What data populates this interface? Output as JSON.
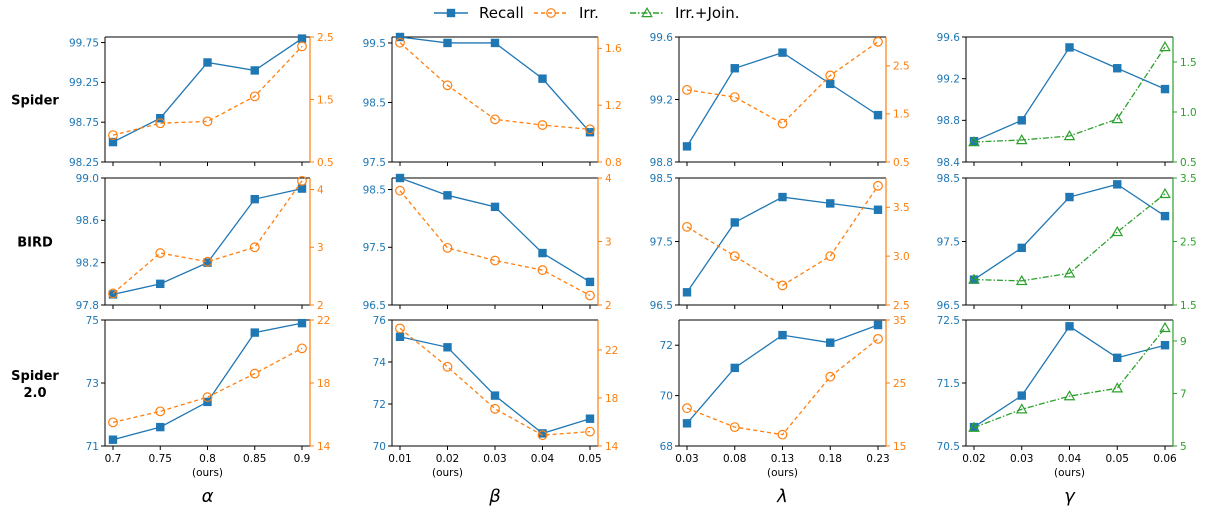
{
  "colors": {
    "recall": "#1f77b4",
    "irr": "#ff7f0e",
    "join": "#2ca02c"
  },
  "legend": [
    {
      "key": "recall",
      "label": "Recall"
    },
    {
      "key": "irr",
      "label": "Irr."
    },
    {
      "key": "join",
      "label": "Irr.+Join."
    }
  ],
  "rows": [
    {
      "label": "Spider"
    },
    {
      "label": "BIRD"
    },
    {
      "label": "Spider\n2.0"
    }
  ],
  "columns": [
    {
      "param": "α",
      "x": [
        "0.7",
        "0.75",
        "0.8",
        "0.85",
        "0.9"
      ],
      "ours_index": 2,
      "secondary": "irr"
    },
    {
      "param": "β",
      "x": [
        "0.01",
        "0.02",
        "0.03",
        "0.04",
        "0.05"
      ],
      "ours_index": 1,
      "secondary": "irr"
    },
    {
      "param": "λ",
      "x": [
        "0.03",
        "0.08",
        "0.13",
        "0.18",
        "0.23"
      ],
      "ours_index": 2,
      "secondary": "irr"
    },
    {
      "param": "γ",
      "x": [
        "0.02",
        "0.03",
        "0.04",
        "0.05",
        "0.06"
      ],
      "ours_index": 2,
      "secondary": "join"
    }
  ],
  "ours_label": "(ours)",
  "chart_data": [
    {
      "type": "line",
      "row": "Spider",
      "param": "α",
      "x": [
        0.7,
        0.75,
        0.8,
        0.85,
        0.9
      ],
      "left": {
        "ylim": [
          98.25,
          99.82
        ],
        "ticks": [
          "98.25",
          "98.75",
          "99.25",
          "99.75"
        ],
        "tickvals": [
          98.25,
          98.75,
          99.25,
          99.75
        ]
      },
      "right": {
        "ylim": [
          0.5,
          2.5
        ],
        "ticks": [
          "0.5",
          "1.5",
          "2.5"
        ],
        "tickvals": [
          0.5,
          1.5,
          2.5
        ]
      },
      "series": [
        {
          "name": "Recall",
          "key": "recall",
          "axis": "left",
          "values": [
            98.5,
            98.8,
            99.5,
            99.4,
            99.8
          ]
        },
        {
          "name": "Irr.",
          "key": "irr",
          "axis": "right",
          "values": [
            0.93,
            1.12,
            1.15,
            1.55,
            2.35
          ]
        }
      ]
    },
    {
      "type": "line",
      "row": "Spider",
      "param": "β",
      "x": [
        0.01,
        0.02,
        0.03,
        0.04,
        0.05
      ],
      "left": {
        "ylim": [
          97.5,
          99.6
        ],
        "ticks": [
          "97.5",
          "98.5",
          "99.5"
        ],
        "tickvals": [
          97.5,
          98.5,
          99.5
        ]
      },
      "right": {
        "ylim": [
          0.8,
          1.68
        ],
        "ticks": [
          "0.8",
          "1.2",
          "1.6"
        ],
        "tickvals": [
          0.8,
          1.2,
          1.6
        ]
      },
      "series": [
        {
          "name": "Recall",
          "key": "recall",
          "axis": "left",
          "values": [
            99.6,
            99.5,
            99.5,
            98.9,
            98.0
          ]
        },
        {
          "name": "Irr.",
          "key": "irr",
          "axis": "right",
          "values": [
            1.64,
            1.34,
            1.1,
            1.06,
            1.03
          ]
        }
      ]
    },
    {
      "type": "line",
      "row": "Spider",
      "param": "λ",
      "x": [
        0.03,
        0.08,
        0.13,
        0.18,
        0.23
      ],
      "left": {
        "ylim": [
          98.8,
          99.6
        ],
        "ticks": [
          "98.8",
          "99.2",
          "99.6"
        ],
        "tickvals": [
          98.8,
          99.2,
          99.6
        ]
      },
      "right": {
        "ylim": [
          0.5,
          3.1
        ],
        "ticks": [
          "0.5",
          "1.5",
          "2.5"
        ],
        "tickvals": [
          0.5,
          1.5,
          2.5
        ]
      },
      "series": [
        {
          "name": "Recall",
          "key": "recall",
          "axis": "left",
          "values": [
            98.9,
            99.4,
            99.5,
            99.3,
            99.1
          ]
        },
        {
          "name": "Irr.",
          "key": "irr",
          "axis": "right",
          "values": [
            2.0,
            1.85,
            1.3,
            2.3,
            3.0
          ]
        }
      ]
    },
    {
      "type": "line",
      "row": "Spider",
      "param": "γ",
      "x": [
        0.02,
        0.03,
        0.04,
        0.05,
        0.06
      ],
      "left": {
        "ylim": [
          98.4,
          99.6
        ],
        "ticks": [
          "98.4",
          "98.8",
          "99.2",
          "99.6"
        ],
        "tickvals": [
          98.4,
          98.8,
          99.2,
          99.6
        ]
      },
      "right": {
        "ylim": [
          0.5,
          1.75
        ],
        "ticks": [
          "0.5",
          "1.0",
          "1.5"
        ],
        "tickvals": [
          0.5,
          1.0,
          1.5
        ]
      },
      "series": [
        {
          "name": "Recall",
          "key": "recall",
          "axis": "left",
          "values": [
            98.6,
            98.8,
            99.5,
            99.3,
            99.1
          ]
        },
        {
          "name": "Irr.+Join.",
          "key": "join",
          "axis": "right",
          "values": [
            0.7,
            0.72,
            0.76,
            0.93,
            1.65
          ]
        }
      ]
    },
    {
      "type": "line",
      "row": "BIRD",
      "param": "α",
      "x": [
        0.7,
        0.75,
        0.8,
        0.85,
        0.9
      ],
      "left": {
        "ylim": [
          97.8,
          99.0
        ],
        "ticks": [
          "97.8",
          "98.2",
          "98.6",
          "99.0"
        ],
        "tickvals": [
          97.8,
          98.2,
          98.6,
          99.0
        ]
      },
      "right": {
        "ylim": [
          2.0,
          4.2
        ],
        "ticks": [
          "2",
          "3",
          "4"
        ],
        "tickvals": [
          2,
          3,
          4
        ]
      },
      "series": [
        {
          "name": "Recall",
          "key": "recall",
          "axis": "left",
          "values": [
            97.9,
            98.0,
            98.2,
            98.8,
            98.9
          ]
        },
        {
          "name": "Irr.",
          "key": "irr",
          "axis": "right",
          "values": [
            2.2,
            2.9,
            2.75,
            3.0,
            4.15
          ]
        }
      ]
    },
    {
      "type": "line",
      "row": "BIRD",
      "param": "β",
      "x": [
        0.01,
        0.02,
        0.03,
        0.04,
        0.05
      ],
      "left": {
        "ylim": [
          96.5,
          98.7
        ],
        "ticks": [
          "96.5",
          "97.5",
          "98.5"
        ],
        "tickvals": [
          96.5,
          97.5,
          98.5
        ]
      },
      "right": {
        "ylim": [
          2.0,
          4.0
        ],
        "ticks": [
          "2",
          "3",
          "4"
        ],
        "tickvals": [
          2,
          3,
          4
        ]
      },
      "series": [
        {
          "name": "Recall",
          "key": "recall",
          "axis": "left",
          "values": [
            98.7,
            98.4,
            98.2,
            97.4,
            96.9
          ]
        },
        {
          "name": "Irr.",
          "key": "irr",
          "axis": "right",
          "values": [
            3.8,
            2.9,
            2.7,
            2.55,
            2.15
          ]
        }
      ]
    },
    {
      "type": "line",
      "row": "BIRD",
      "param": "λ",
      "x": [
        0.03,
        0.08,
        0.13,
        0.18,
        0.23
      ],
      "left": {
        "ylim": [
          96.5,
          98.5
        ],
        "ticks": [
          "96.5",
          "97.5",
          "98.5"
        ],
        "tickvals": [
          96.5,
          97.5,
          98.5
        ]
      },
      "right": {
        "ylim": [
          2.5,
          3.8
        ],
        "ticks": [
          "2.5",
          "3.0",
          "3.5"
        ],
        "tickvals": [
          2.5,
          3.0,
          3.5
        ]
      },
      "series": [
        {
          "name": "Recall",
          "key": "recall",
          "axis": "left",
          "values": [
            96.7,
            97.8,
            98.2,
            98.1,
            98.0
          ]
        },
        {
          "name": "Irr.",
          "key": "irr",
          "axis": "right",
          "values": [
            3.3,
            3.0,
            2.7,
            3.0,
            3.72
          ]
        }
      ]
    },
    {
      "type": "line",
      "row": "BIRD",
      "param": "γ",
      "x": [
        0.02,
        0.03,
        0.04,
        0.05,
        0.06
      ],
      "left": {
        "ylim": [
          96.5,
          98.5
        ],
        "ticks": [
          "96.5",
          "97.5",
          "98.5"
        ],
        "tickvals": [
          96.5,
          97.5,
          98.5
        ]
      },
      "right": {
        "ylim": [
          1.5,
          3.5
        ],
        "ticks": [
          "1.5",
          "2.5",
          "3.5"
        ],
        "tickvals": [
          1.5,
          2.5,
          3.5
        ]
      },
      "series": [
        {
          "name": "Recall",
          "key": "recall",
          "axis": "left",
          "values": [
            96.9,
            97.4,
            98.2,
            98.4,
            97.9
          ]
        },
        {
          "name": "Irr.+Join.",
          "key": "join",
          "axis": "right",
          "values": [
            1.9,
            1.88,
            2.0,
            2.65,
            3.25
          ]
        }
      ]
    },
    {
      "type": "line",
      "row": "Spider 2.0",
      "param": "α",
      "x": [
        0.7,
        0.75,
        0.8,
        0.85,
        0.9
      ],
      "left": {
        "ylim": [
          71.0,
          75.0
        ],
        "ticks": [
          "71",
          "73",
          "75"
        ],
        "tickvals": [
          71,
          73,
          75
        ]
      },
      "right": {
        "ylim": [
          14,
          22
        ],
        "ticks": [
          "14",
          "18",
          "22"
        ],
        "tickvals": [
          14,
          18,
          22
        ]
      },
      "series": [
        {
          "name": "Recall",
          "key": "recall",
          "axis": "left",
          "values": [
            71.2,
            71.6,
            72.4,
            74.6,
            74.9
          ]
        },
        {
          "name": "Irr.",
          "key": "irr",
          "axis": "right",
          "values": [
            15.5,
            16.2,
            17.1,
            18.6,
            20.2
          ]
        }
      ]
    },
    {
      "type": "line",
      "row": "Spider 2.0",
      "param": "β",
      "x": [
        0.01,
        0.02,
        0.03,
        0.04,
        0.05
      ],
      "left": {
        "ylim": [
          70.0,
          76.0
        ],
        "ticks": [
          "70",
          "72",
          "74",
          "76"
        ],
        "tickvals": [
          70,
          72,
          74,
          76
        ]
      },
      "right": {
        "ylim": [
          14,
          24.5
        ],
        "ticks": [
          "14",
          "18",
          "22"
        ],
        "tickvals": [
          14,
          18,
          22
        ]
      },
      "series": [
        {
          "name": "Recall",
          "key": "recall",
          "axis": "left",
          "values": [
            75.2,
            74.7,
            72.4,
            70.6,
            71.3
          ]
        },
        {
          "name": "Irr.",
          "key": "irr",
          "axis": "right",
          "values": [
            23.8,
            20.6,
            17.1,
            14.9,
            15.2
          ]
        }
      ]
    },
    {
      "type": "line",
      "row": "Spider 2.0",
      "param": "λ",
      "x": [
        0.03,
        0.08,
        0.13,
        0.18,
        0.23
      ],
      "left": {
        "ylim": [
          68.0,
          73.0
        ],
        "ticks": [
          "68",
          "70",
          "72"
        ],
        "tickvals": [
          68,
          70,
          72
        ]
      },
      "right": {
        "ylim": [
          15,
          35
        ],
        "ticks": [
          "15",
          "25",
          "35"
        ],
        "tickvals": [
          15,
          25,
          35
        ]
      },
      "series": [
        {
          "name": "Recall",
          "key": "recall",
          "axis": "left",
          "values": [
            68.9,
            71.1,
            72.4,
            72.1,
            72.8
          ]
        },
        {
          "name": "Irr.",
          "key": "irr",
          "axis": "right",
          "values": [
            21.0,
            18.0,
            16.8,
            26.0,
            32.0
          ]
        }
      ]
    },
    {
      "type": "line",
      "row": "Spider 2.0",
      "param": "γ",
      "x": [
        0.02,
        0.03,
        0.04,
        0.05,
        0.06
      ],
      "left": {
        "ylim": [
          70.5,
          72.5
        ],
        "ticks": [
          "70.5",
          "71.5",
          "72.5"
        ],
        "tickvals": [
          70.5,
          71.5,
          72.5
        ]
      },
      "right": {
        "ylim": [
          5,
          9.8
        ],
        "ticks": [
          "5",
          "7",
          "9"
        ],
        "tickvals": [
          5,
          7,
          9
        ]
      },
      "series": [
        {
          "name": "Recall",
          "key": "recall",
          "axis": "left",
          "values": [
            70.8,
            71.3,
            72.4,
            71.9,
            72.1
          ]
        },
        {
          "name": "Irr.+Join.",
          "key": "join",
          "axis": "right",
          "values": [
            5.7,
            6.4,
            6.9,
            7.2,
            9.5
          ]
        }
      ]
    }
  ]
}
